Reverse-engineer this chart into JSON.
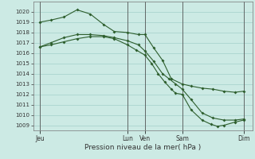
{
  "title": "Pression niveau de la mer( hPa )",
  "background_color": "#cceae4",
  "grid_color": "#aad4ce",
  "line_color": "#2d5e2d",
  "ylim": [
    1008.5,
    1021.0
  ],
  "yticks": [
    1009,
    1010,
    1011,
    1012,
    1013,
    1014,
    1015,
    1016,
    1017,
    1018,
    1019,
    1020
  ],
  "xlim": [
    0,
    100
  ],
  "x_day_labels": [
    {
      "label": "Jeu",
      "x": 3
    },
    {
      "label": "Lun",
      "x": 43
    },
    {
      "label": "Ven",
      "x": 51
    },
    {
      "label": "Sam",
      "x": 68
    },
    {
      "label": "Dim",
      "x": 96
    }
  ],
  "vlines": [
    3,
    43,
    51,
    68,
    96
  ],
  "series1_x": [
    3,
    8,
    14,
    20,
    26,
    32,
    37,
    43,
    48,
    51,
    55,
    59,
    63,
    68,
    72,
    77,
    82,
    87,
    92,
    96
  ],
  "series1_y": [
    1019.0,
    1019.2,
    1019.5,
    1020.2,
    1019.8,
    1018.8,
    1018.1,
    1018.0,
    1017.8,
    1017.8,
    1016.5,
    1015.3,
    1013.5,
    1013.0,
    1012.8,
    1012.6,
    1012.5,
    1012.3,
    1012.2,
    1012.3
  ],
  "series2_x": [
    3,
    8,
    14,
    20,
    26,
    32,
    37,
    43,
    48,
    51,
    55,
    59,
    62,
    65,
    68,
    72,
    77,
    82,
    87,
    92,
    96
  ],
  "series2_y": [
    1016.6,
    1017.0,
    1017.5,
    1017.8,
    1017.8,
    1017.7,
    1017.5,
    1017.2,
    1016.8,
    1016.2,
    1015.2,
    1014.0,
    1013.5,
    1013.0,
    1012.5,
    1011.5,
    1010.2,
    1009.7,
    1009.5,
    1009.5,
    1009.6
  ],
  "series3_x": [
    3,
    8,
    14,
    20,
    26,
    32,
    37,
    43,
    47,
    51,
    54,
    57,
    60,
    63,
    65,
    68,
    72,
    77,
    81,
    84,
    87,
    92,
    96
  ],
  "series3_y": [
    1016.6,
    1016.8,
    1017.1,
    1017.4,
    1017.6,
    1017.6,
    1017.4,
    1016.8,
    1016.3,
    1015.8,
    1015.0,
    1014.0,
    1013.2,
    1012.5,
    1012.1,
    1012.0,
    1010.5,
    1009.5,
    1009.1,
    1008.9,
    1009.0,
    1009.3,
    1009.5
  ]
}
